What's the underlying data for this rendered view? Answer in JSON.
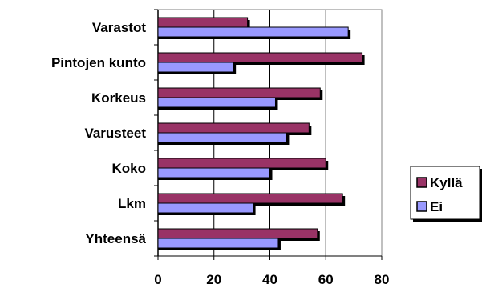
{
  "chart_data": {
    "type": "bar",
    "orientation": "horizontal",
    "categories": [
      "Varastot",
      "Pintojen kunto",
      "Korkeus",
      "Varusteet",
      "Koko",
      "Lkm",
      "Yhteensä"
    ],
    "series": [
      {
        "name": "Kyllä",
        "color": "#993366",
        "values": [
          32,
          73,
          58,
          54,
          60,
          66,
          57
        ]
      },
      {
        "name": "Ei",
        "color": "#9999ff",
        "values": [
          68,
          27,
          42,
          46,
          40,
          34,
          43
        ]
      }
    ],
    "xlim": [
      0,
      80
    ],
    "xticks": [
      "0",
      "20",
      "40",
      "60",
      "80"
    ],
    "grid": "vertical",
    "legend_position": "right",
    "title": "",
    "xlabel": "",
    "ylabel": ""
  }
}
